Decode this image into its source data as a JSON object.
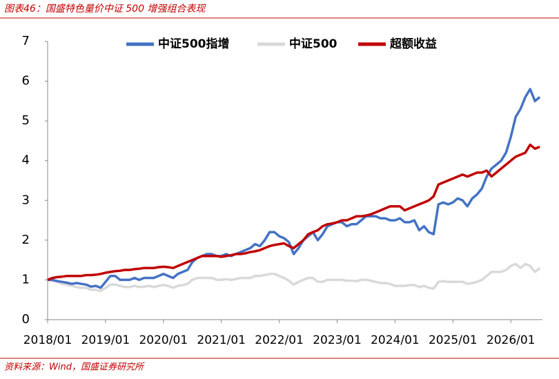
{
  "chart_data": {
    "type": "line",
    "title": "图表46：国盛特色量价中证 500 增强组合表现",
    "source": "资料来源：Wind，国盛证券研究所",
    "categories": [
      "2018/01",
      null,
      null,
      null,
      null,
      null,
      null,
      null,
      null,
      null,
      null,
      null,
      "2019/01",
      null,
      null,
      null,
      null,
      null,
      null,
      null,
      null,
      null,
      null,
      null,
      "2020/01",
      null,
      null,
      null,
      null,
      null,
      null,
      null,
      null,
      null,
      null,
      null,
      "2021/01",
      null,
      null,
      null,
      null,
      null,
      null,
      null,
      null,
      null,
      null,
      null,
      "2022/01",
      null,
      null,
      null,
      null,
      null,
      null,
      null,
      null,
      null,
      null,
      null,
      "2023/01",
      null,
      null,
      null,
      null,
      null,
      null,
      null,
      null,
      null,
      null,
      null,
      "2024/01",
      null,
      null,
      null,
      null,
      null,
      null,
      null,
      null,
      null,
      null,
      null,
      "2025/01",
      null,
      null,
      null,
      null,
      null,
      null,
      null,
      null,
      null,
      null,
      null,
      "2026/01",
      null,
      null,
      null,
      null,
      null,
      null
    ],
    "series": [
      {
        "name": "中证500指增",
        "color": "#4472c4",
        "values": [
          1.0,
          1.0,
          0.97,
          0.95,
          0.93,
          0.9,
          0.92,
          0.9,
          0.88,
          0.83,
          0.85,
          0.8,
          0.95,
          1.1,
          1.1,
          1.0,
          1.0,
          1.0,
          1.05,
          1.0,
          1.05,
          1.05,
          1.05,
          1.1,
          1.15,
          1.1,
          1.05,
          1.15,
          1.2,
          1.25,
          1.45,
          1.55,
          1.6,
          1.65,
          1.65,
          1.6,
          1.6,
          1.65,
          1.6,
          1.65,
          1.7,
          1.75,
          1.8,
          1.9,
          1.85,
          2.0,
          2.2,
          2.2,
          2.1,
          2.05,
          1.95,
          1.65,
          1.8,
          2.0,
          2.1,
          2.2,
          2.0,
          2.15,
          2.35,
          2.4,
          2.45,
          2.45,
          2.35,
          2.4,
          2.4,
          2.5,
          2.6,
          2.6,
          2.6,
          2.55,
          2.55,
          2.5,
          2.5,
          2.55,
          2.45,
          2.45,
          2.5,
          2.25,
          2.35,
          2.2,
          2.15,
          2.9,
          2.95,
          2.9,
          2.95,
          3.05,
          3.0,
          2.85,
          3.05,
          3.15,
          3.3,
          3.6,
          3.8,
          3.9,
          4.0,
          4.2,
          4.6,
          5.1,
          5.3,
          5.6,
          5.8,
          5.5,
          5.6
        ]
      },
      {
        "name": "中证500",
        "color": "#d9d9d9",
        "values": [
          1.0,
          0.98,
          0.95,
          0.9,
          0.88,
          0.85,
          0.82,
          0.8,
          0.8,
          0.75,
          0.75,
          0.72,
          0.8,
          0.88,
          0.88,
          0.85,
          0.82,
          0.82,
          0.85,
          0.82,
          0.83,
          0.85,
          0.82,
          0.85,
          0.87,
          0.85,
          0.8,
          0.85,
          0.87,
          0.9,
          1.0,
          1.05,
          1.05,
          1.05,
          1.05,
          1.0,
          1.0,
          1.02,
          1.0,
          1.02,
          1.05,
          1.05,
          1.05,
          1.1,
          1.1,
          1.12,
          1.15,
          1.15,
          1.1,
          1.05,
          0.98,
          0.88,
          0.95,
          1.0,
          1.05,
          1.05,
          0.95,
          0.95,
          1.0,
          1.0,
          1.0,
          1.0,
          0.98,
          0.98,
          0.97,
          1.0,
          1.0,
          0.98,
          0.95,
          0.92,
          0.92,
          0.9,
          0.85,
          0.85,
          0.85,
          0.87,
          0.87,
          0.82,
          0.85,
          0.8,
          0.78,
          0.95,
          0.97,
          0.95,
          0.95,
          0.95,
          0.95,
          0.9,
          0.92,
          0.95,
          1.0,
          1.1,
          1.2,
          1.2,
          1.2,
          1.25,
          1.35,
          1.4,
          1.3,
          1.4,
          1.35,
          1.2,
          1.3
        ]
      },
      {
        "name": "超额收益",
        "color": "#c00000",
        "values": [
          1.0,
          1.05,
          1.07,
          1.08,
          1.1,
          1.1,
          1.1,
          1.1,
          1.12,
          1.12,
          1.13,
          1.15,
          1.18,
          1.2,
          1.22,
          1.23,
          1.25,
          1.25,
          1.27,
          1.28,
          1.3,
          1.3,
          1.3,
          1.32,
          1.33,
          1.32,
          1.3,
          1.35,
          1.4,
          1.45,
          1.5,
          1.55,
          1.6,
          1.6,
          1.6,
          1.6,
          1.58,
          1.6,
          1.62,
          1.65,
          1.65,
          1.67,
          1.7,
          1.72,
          1.75,
          1.8,
          1.85,
          1.88,
          1.9,
          1.92,
          1.85,
          1.8,
          1.9,
          2.0,
          2.15,
          2.2,
          2.25,
          2.35,
          2.4,
          2.42,
          2.45,
          2.5,
          2.5,
          2.55,
          2.6,
          2.6,
          2.62,
          2.65,
          2.7,
          2.75,
          2.8,
          2.85,
          2.85,
          2.85,
          2.75,
          2.8,
          2.85,
          2.9,
          2.95,
          3.0,
          3.1,
          3.4,
          3.45,
          3.5,
          3.55,
          3.6,
          3.65,
          3.6,
          3.65,
          3.7,
          3.7,
          3.75,
          3.6,
          3.7,
          3.8,
          3.9,
          4.0,
          4.1,
          4.15,
          4.2,
          4.4,
          4.3,
          4.35
        ]
      }
    ],
    "ylim": [
      0,
      7
    ],
    "yticks": [
      0,
      1,
      2,
      3,
      4,
      5,
      6,
      7
    ],
    "grid": false,
    "legend": "top"
  }
}
